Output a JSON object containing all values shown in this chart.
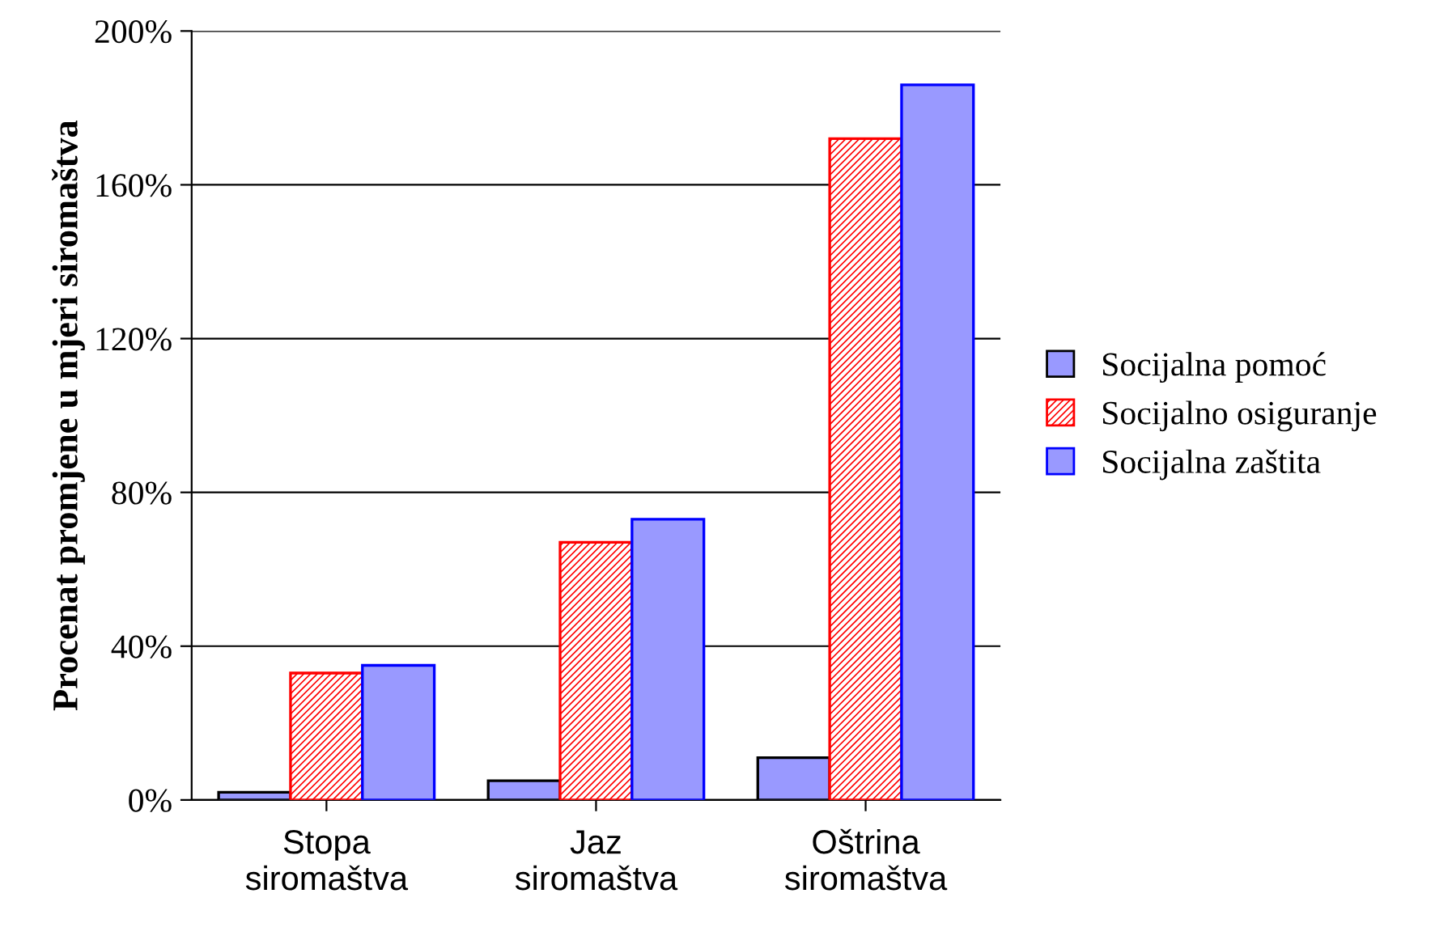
{
  "chart_data": {
    "type": "bar",
    "ylabel": "Procenat promjene u mjeri siromaštva",
    "categories": [
      "Stopa\nsiromaštva",
      "Jaz\nsiromaštva",
      "Oštrina\nsiromaštva"
    ],
    "series": [
      {
        "name": "Socijalna pomoć",
        "color": "#9999ff",
        "values": [
          2,
          5,
          11
        ]
      },
      {
        "name": "Socijalno osiguranje",
        "color": "#ff0000",
        "values": [
          33,
          67,
          172
        ]
      },
      {
        "name": "Socijalna zaštita",
        "color": "#9999ff",
        "values": [
          35,
          73,
          186
        ]
      }
    ],
    "ylim": [
      0,
      200
    ],
    "yticks": [
      {
        "value": 0,
        "label": "0%"
      },
      {
        "value": 40,
        "label": "40%"
      },
      {
        "value": 80,
        "label": "80%"
      },
      {
        "value": 120,
        "label": "120%"
      },
      {
        "value": 160,
        "label": "160%"
      },
      {
        "value": 200,
        "label": "200%"
      }
    ],
    "grid": "y",
    "legend": "right"
  }
}
